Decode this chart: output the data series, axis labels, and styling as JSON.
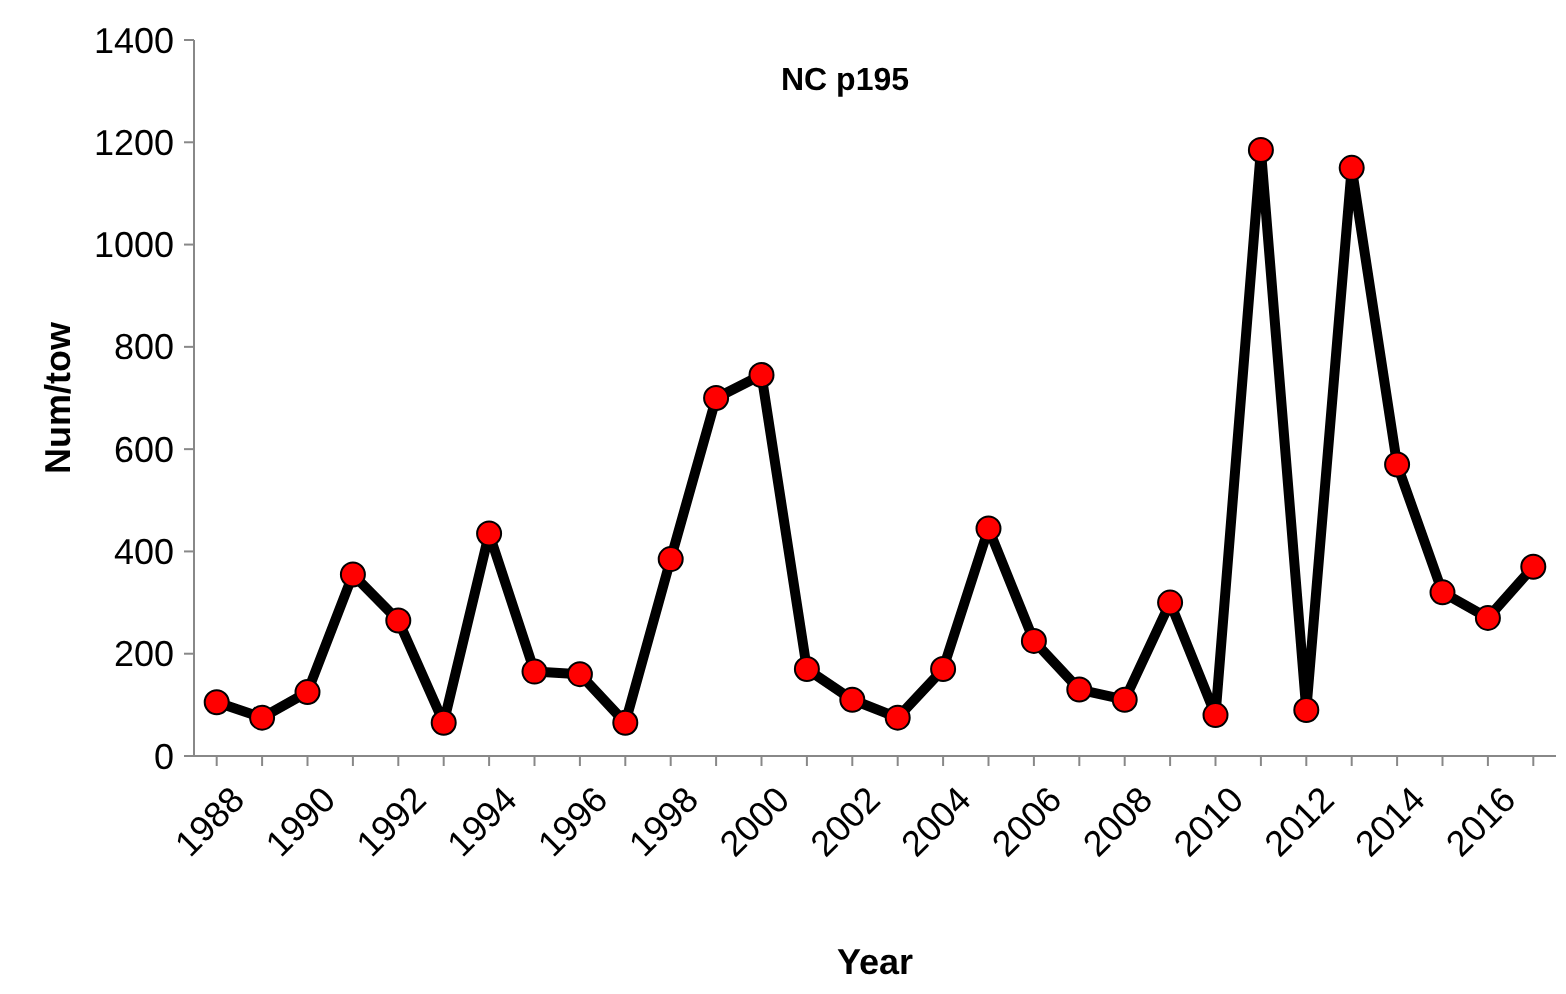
{
  "chart_data": {
    "type": "line",
    "title": "NC p195",
    "xlabel": "Year",
    "ylabel": "Num/tow",
    "categories": [
      "1988",
      null,
      "1990",
      null,
      "1992",
      null,
      "1994",
      null,
      "1996",
      null,
      "1998",
      null,
      "2000",
      null,
      "2002",
      null,
      "2004",
      null,
      "2006",
      null,
      "2008",
      null,
      "2010",
      null,
      "2012",
      null,
      "2014",
      null,
      "2016",
      null
    ],
    "series": [
      {
        "color": "#000000",
        "values": [
          105,
          75,
          125,
          355,
          265,
          65,
          435,
          165,
          160,
          65,
          385,
          700,
          745,
          170,
          110,
          75,
          170,
          445,
          225,
          130,
          110,
          300,
          80,
          1185,
          90,
          1150,
          570,
          320,
          270,
          370
        ]
      }
    ],
    "ylim": [
      0,
      1400
    ],
    "yticks": [
      0,
      200,
      400,
      600,
      800,
      1000,
      1200,
      1400
    ],
    "marker": "circle",
    "line_style": "solid"
  }
}
